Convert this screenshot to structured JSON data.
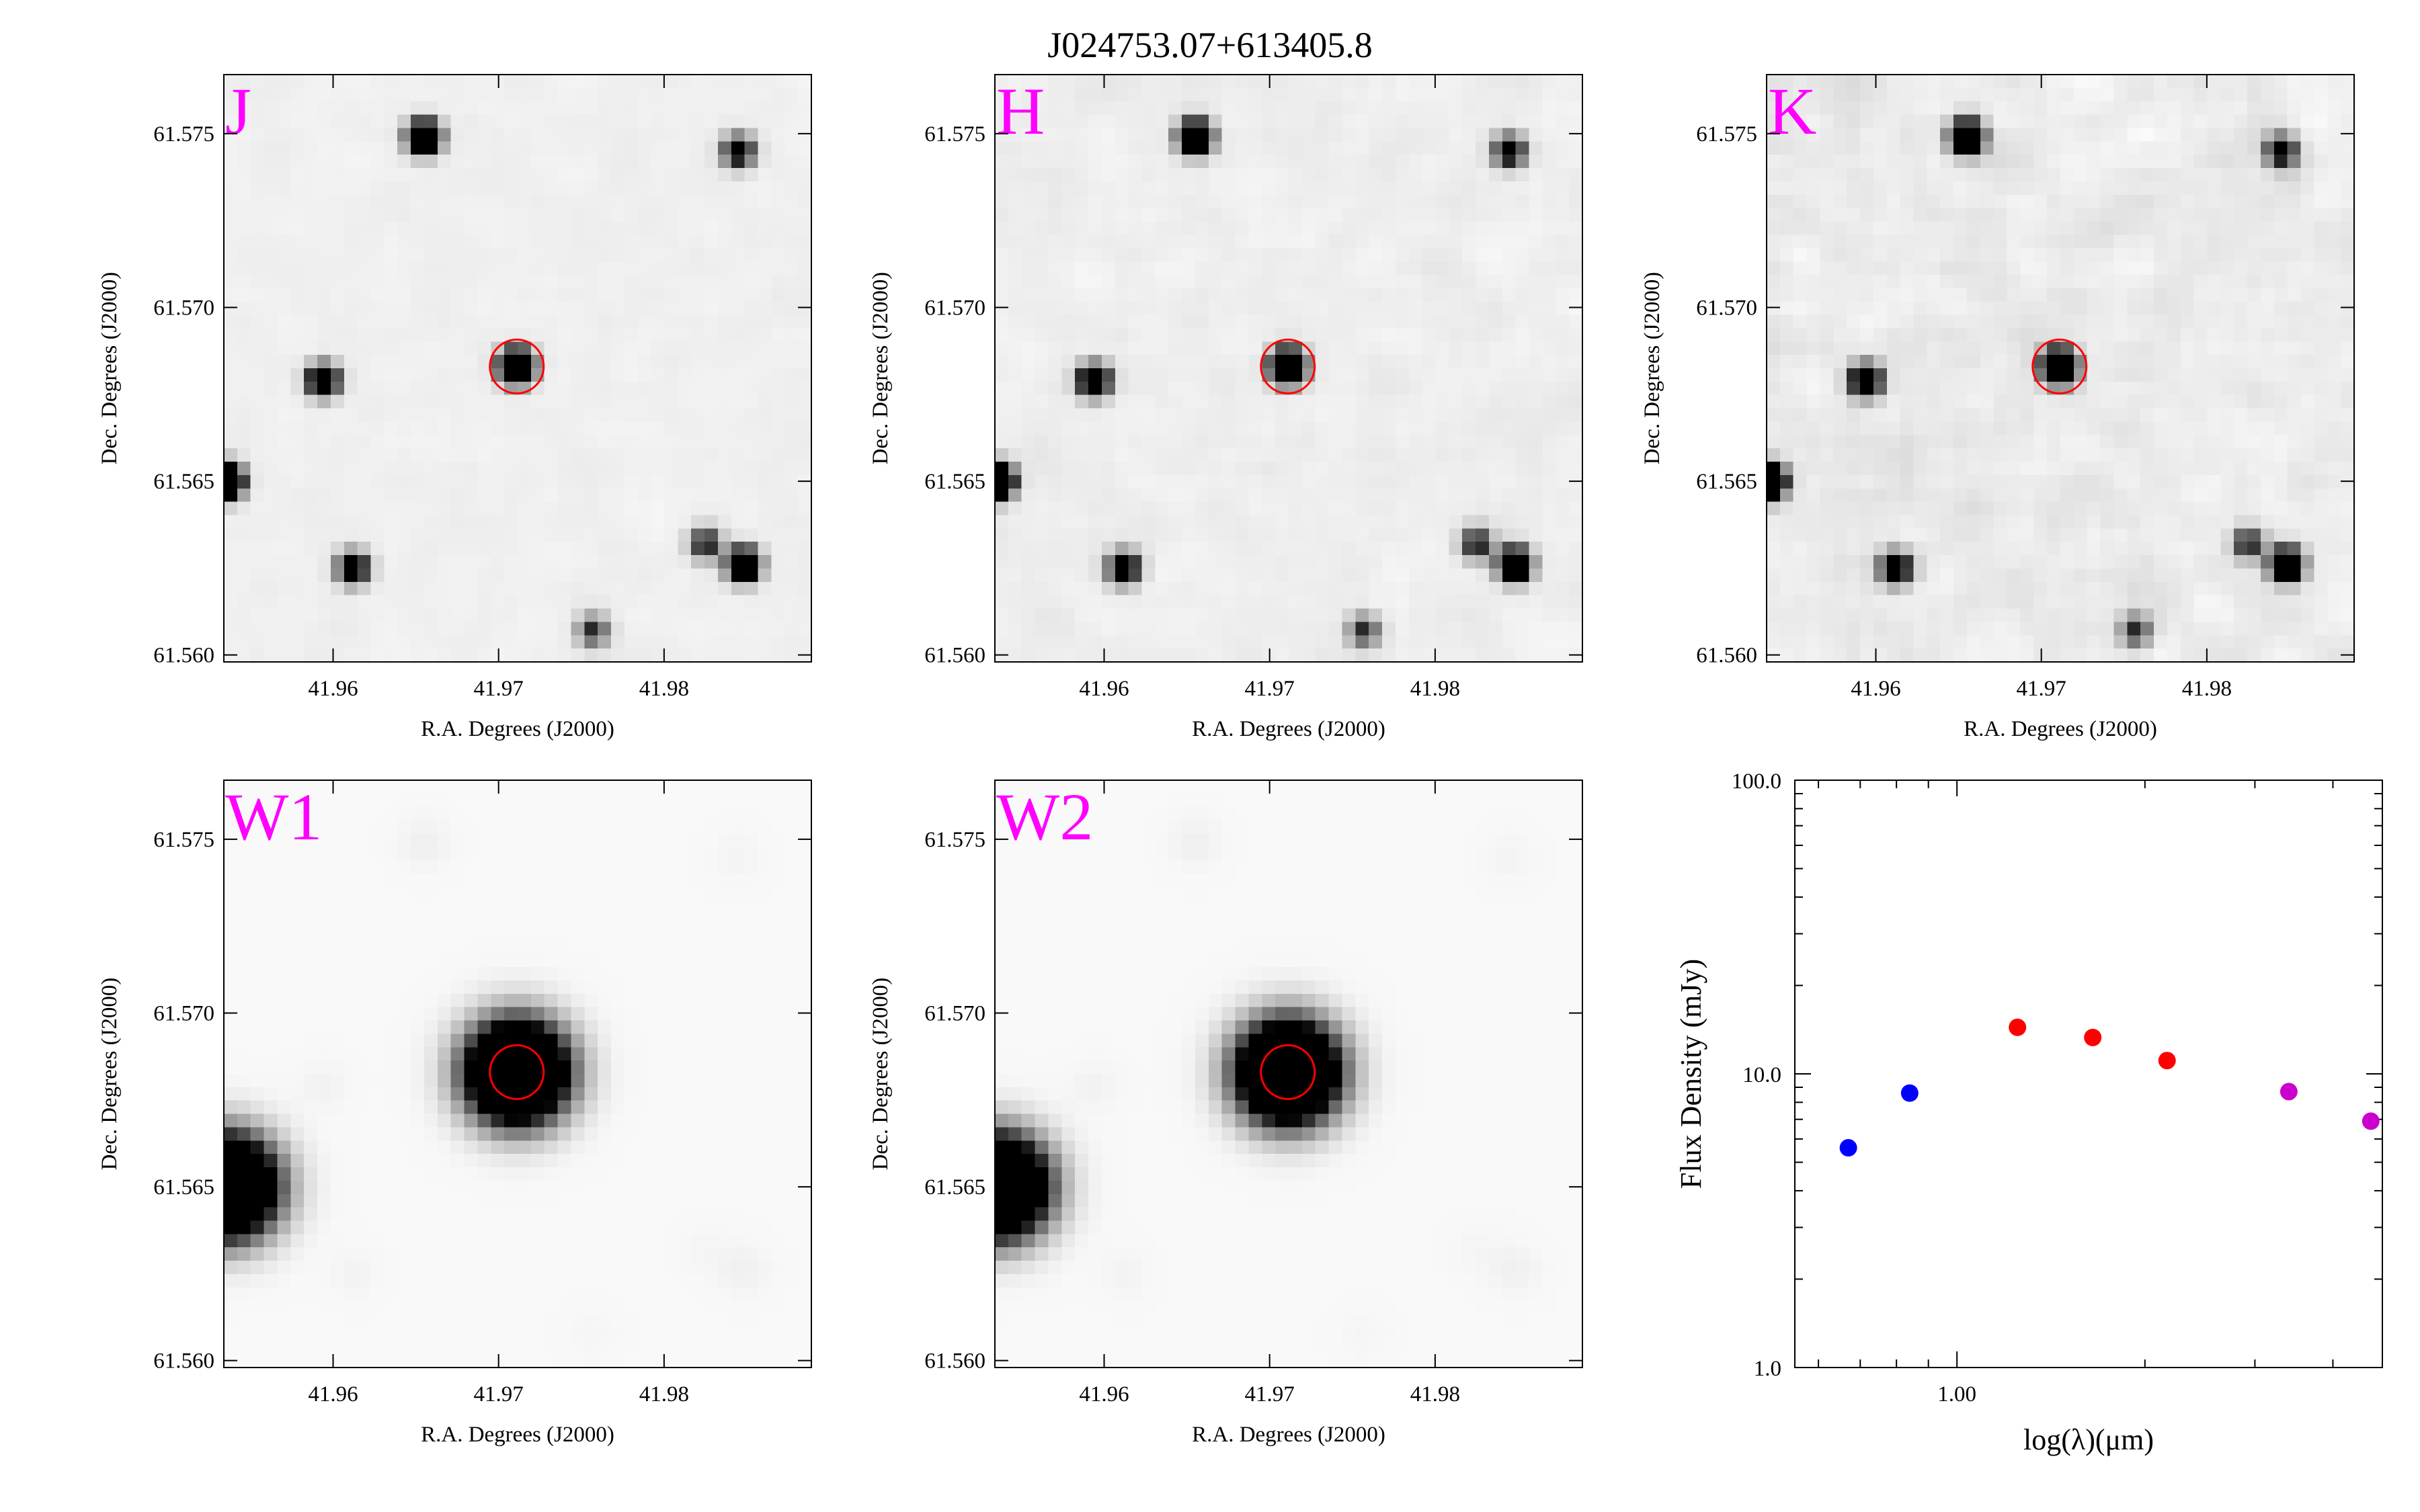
{
  "figure": {
    "title": "J024753.07+613405.8"
  },
  "image_axes": {
    "xlabel": "R.A. Degrees (J2000)",
    "ylabel": "Dec. Degrees (J2000)",
    "xticks": [
      "41.96",
      "41.97",
      "41.98"
    ],
    "xtick_values": [
      41.96,
      41.97,
      41.98
    ],
    "xlim": [
      41.9534,
      41.9889
    ],
    "yticks": [
      "61.575",
      "61.570",
      "61.565",
      "61.560"
    ],
    "ytick_values": [
      61.575,
      61.57,
      61.565,
      61.56
    ],
    "ylim": [
      61.5598,
      61.5767
    ]
  },
  "panels": [
    {
      "band": "J",
      "style": "sharp",
      "noise": 0.35
    },
    {
      "band": "H",
      "style": "sharp",
      "noise": 0.55
    },
    {
      "band": "K",
      "style": "sharp",
      "noise": 1.0
    },
    {
      "band": "W1",
      "style": "wise",
      "noise": 0
    },
    {
      "band": "W2",
      "style": "wise",
      "noise": 0
    }
  ],
  "target": {
    "ra": 41.9711,
    "dec": 61.5683,
    "circle_color": "#ff0000"
  },
  "sources": [
    {
      "ra": 41.9711,
      "dec": 61.5683,
      "strength": 1.0
    },
    {
      "ra": 41.9655,
      "dec": 61.5749,
      "strength": 0.75
    },
    {
      "ra": 41.9845,
      "dec": 61.5745,
      "strength": 0.4
    },
    {
      "ra": 41.9594,
      "dec": 61.5679,
      "strength": 0.55
    },
    {
      "ra": 41.9612,
      "dec": 61.5625,
      "strength": 0.45
    },
    {
      "ra": 41.9848,
      "dec": 61.5626,
      "strength": 0.7
    },
    {
      "ra": 41.9825,
      "dec": 61.5632,
      "strength": 0.3
    },
    {
      "ra": 41.9757,
      "dec": 61.5607,
      "strength": 0.25
    },
    {
      "ra": 41.9535,
      "dec": 61.565,
      "strength": 1.0
    }
  ],
  "chart_data": {
    "type": "scatter",
    "x_scale": "log",
    "y_scale": "log",
    "xlabel": "log(λ)(μm)",
    "ylabel": "Flux Density (mJy)",
    "xticks": [
      "1.00"
    ],
    "yticks": [
      "1.0",
      "10.0",
      "100.0"
    ],
    "xlim": [
      0.55,
      4.8
    ],
    "ylim": [
      1.0,
      100.0
    ],
    "series": [
      {
        "color": "#0000ff",
        "x": [
          0.67,
          0.84
        ],
        "y": [
          5.6,
          8.6
        ]
      },
      {
        "color": "#ff0000",
        "x": [
          1.25,
          1.65,
          2.17
        ],
        "y": [
          14.4,
          13.3,
          11.1
        ]
      },
      {
        "color": "#cc00cc",
        "x": [
          3.4,
          4.6
        ],
        "y": [
          8.7,
          6.9
        ]
      }
    ]
  }
}
